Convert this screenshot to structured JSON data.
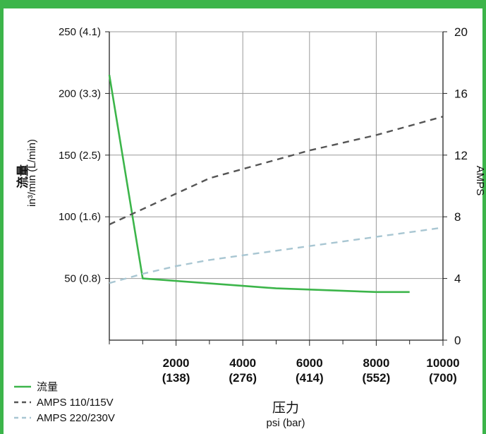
{
  "chart_data": {
    "type": "line",
    "title": "",
    "x_axis": {
      "label": "压力",
      "unit_label": "psi (bar)",
      "range": [
        0,
        10000
      ],
      "ticks": [
        {
          "value": 2000,
          "label": "2000",
          "sub": "(138)"
        },
        {
          "value": 4000,
          "label": "4000",
          "sub": "(276)"
        },
        {
          "value": 6000,
          "label": "6000",
          "sub": "(414)"
        },
        {
          "value": 8000,
          "label": "8000",
          "sub": "(552)"
        },
        {
          "value": 10000,
          "label": "10000",
          "sub": "(700)"
        }
      ],
      "minor_ticks": [
        0,
        1000,
        3000,
        5000,
        7000,
        9000
      ]
    },
    "y_left": {
      "label": "流量",
      "unit_label": "in³/min (L/min)",
      "range": [
        0,
        250
      ],
      "ticks": [
        {
          "value": 50,
          "label": "50 (0.8)"
        },
        {
          "value": 100,
          "label": "100 (1.6)"
        },
        {
          "value": 150,
          "label": "150 (2.5)"
        },
        {
          "value": 200,
          "label": "200 (3.3)"
        },
        {
          "value": 250,
          "label": "250 (4.1)"
        }
      ]
    },
    "y_right": {
      "label": "AMPS",
      "range": [
        0,
        20
      ],
      "ticks": [
        {
          "value": 0,
          "label": "0"
        },
        {
          "value": 4,
          "label": "4"
        },
        {
          "value": 8,
          "label": "8"
        },
        {
          "value": 12,
          "label": "12"
        },
        {
          "value": 16,
          "label": "16"
        },
        {
          "value": 20,
          "label": "20"
        }
      ]
    },
    "grid": true,
    "series": [
      {
        "name": "流量",
        "axis": "left",
        "color": "#3cb54a",
        "style": "solid",
        "x": [
          0,
          1000,
          2000,
          3000,
          4000,
          5000,
          6000,
          7000,
          8000,
          9000
        ],
        "y": [
          215,
          50,
          48,
          46,
          44,
          42,
          41,
          40,
          39,
          39
        ]
      },
      {
        "name": "AMPS 110/115V",
        "axis": "right",
        "color": "#555555",
        "style": "dashed",
        "x": [
          0,
          1000,
          2000,
          3000,
          4000,
          5000,
          6000,
          7000,
          8000,
          9000,
          10000
        ],
        "y": [
          7.5,
          8.5,
          9.5,
          10.5,
          11.1,
          11.7,
          12.3,
          12.8,
          13.3,
          13.9,
          14.5
        ]
      },
      {
        "name": "AMPS 220/230V",
        "axis": "right",
        "color": "#a8c6d2",
        "style": "dashed",
        "x": [
          0,
          1000,
          2000,
          3000,
          4000,
          5000,
          6000,
          7000,
          8000,
          9000,
          10000
        ],
        "y": [
          3.7,
          4.3,
          4.8,
          5.2,
          5.5,
          5.8,
          6.1,
          6.4,
          6.7,
          7.0,
          7.3
        ]
      }
    ],
    "legend_position": "bottom-left"
  },
  "colors": {
    "frame": "#3cb54a",
    "grid": "#999999",
    "axis": "#222222"
  }
}
